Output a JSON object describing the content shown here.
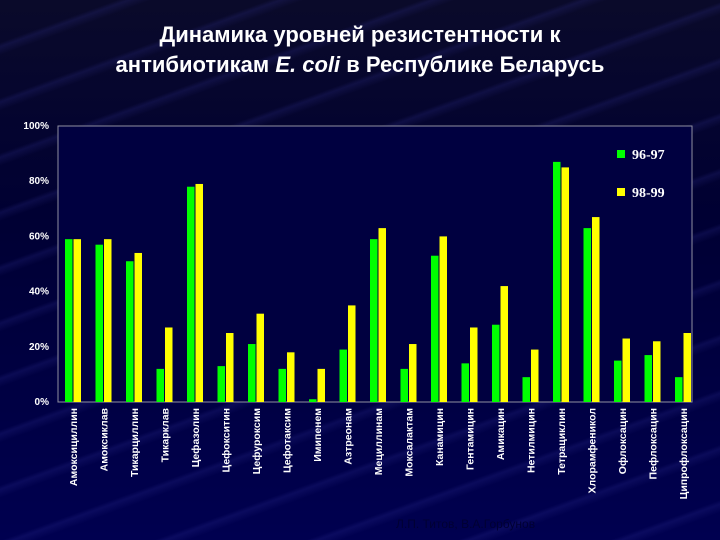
{
  "title": {
    "line1": "Динамика уровней резистентности к",
    "line2_before": "антибиотикам ",
    "line2_italic": "E. coli",
    "line2_after": " в Республике Беларусь"
  },
  "footer": "Л.П. Титов, В.А.Горбунов",
  "colors": {
    "background": "#000033",
    "plot_area": "#000040",
    "series_9697": "#00ff00",
    "series_9899": "#ffff00",
    "axis_text": "#ffffff"
  },
  "chart_data": {
    "type": "bar",
    "categories": [
      "Амоксициллин",
      "Амоксиклав",
      "Тикарциллин",
      "Тикарклав",
      "Цефазолин",
      "Цефокситин",
      "Цефуроксим",
      "Цефотаксим",
      "Имипенем",
      "Азтреонам",
      "Мециллинам",
      "Моксалактам",
      "Канамицин",
      "Гентамицин",
      "Амикацин",
      "Нетилмицин",
      "Тетрациклин",
      "Хлорамфеникол",
      "Офлоксацин",
      "Пефлоксацин",
      "Ципрофлоксацин"
    ],
    "series": [
      {
        "name": "96-97",
        "values": [
          59,
          57,
          51,
          12,
          78,
          13,
          21,
          12,
          1,
          19,
          59,
          12,
          53,
          14,
          28,
          9,
          87,
          63,
          15,
          17,
          9
        ]
      },
      {
        "name": "98-99",
        "values": [
          59,
          59,
          54,
          27,
          79,
          25,
          32,
          18,
          12,
          35,
          63,
          21,
          60,
          27,
          42,
          19,
          85,
          67,
          23,
          22,
          25
        ]
      }
    ],
    "ylim": [
      0,
      100
    ],
    "yticks": [
      "0%",
      "20%",
      "40%",
      "60%",
      "80%",
      "100%"
    ],
    "legend_position": "top-right",
    "grid": false
  }
}
